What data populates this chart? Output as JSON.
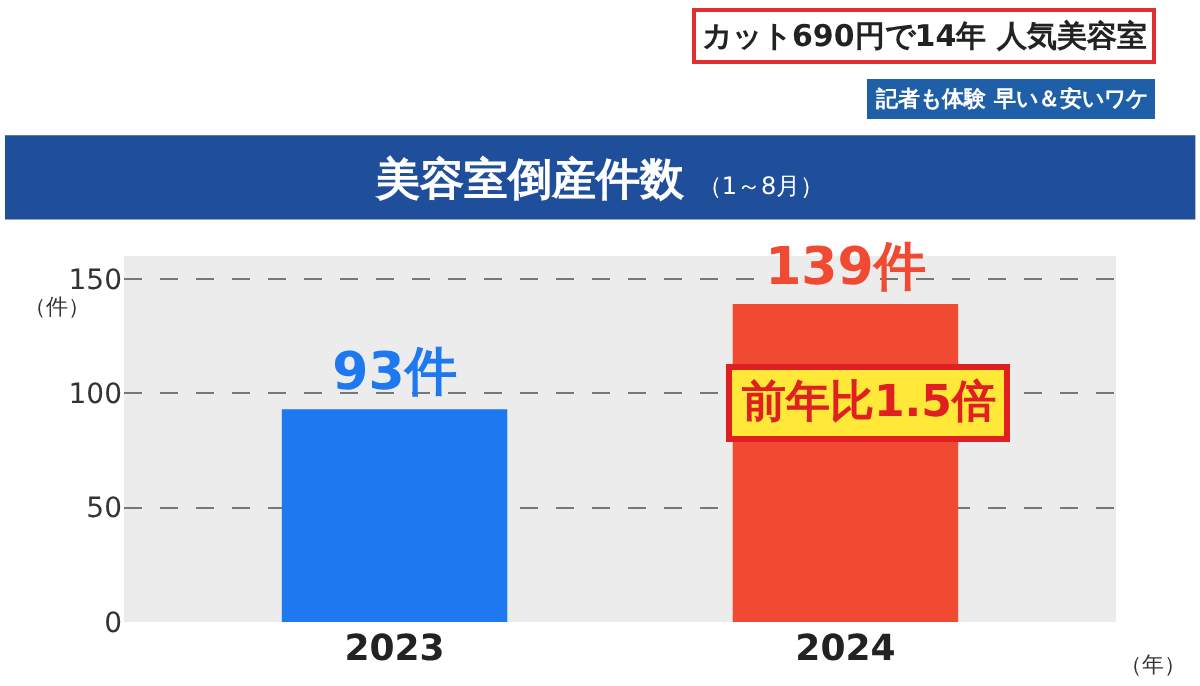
{
  "chart_data": {
    "type": "bar",
    "title": "美容室倒産件数",
    "subtitle": "（1～8月）",
    "ylabel": "（件）",
    "xlabel": "（年）",
    "categories": [
      "2023",
      "2024"
    ],
    "values": [
      93,
      139
    ],
    "value_labels": [
      "93件",
      "139件"
    ],
    "colors": [
      "#1e78f0",
      "#f04a32"
    ],
    "ylim": [
      0,
      160
    ],
    "yticks": [
      0,
      50,
      100,
      150
    ],
    "grid": "y",
    "annotations": [
      "カット690円で14年 人気美容室",
      "記者も体験 早い＆安いワケ",
      "前年比1.5倍"
    ]
  }
}
